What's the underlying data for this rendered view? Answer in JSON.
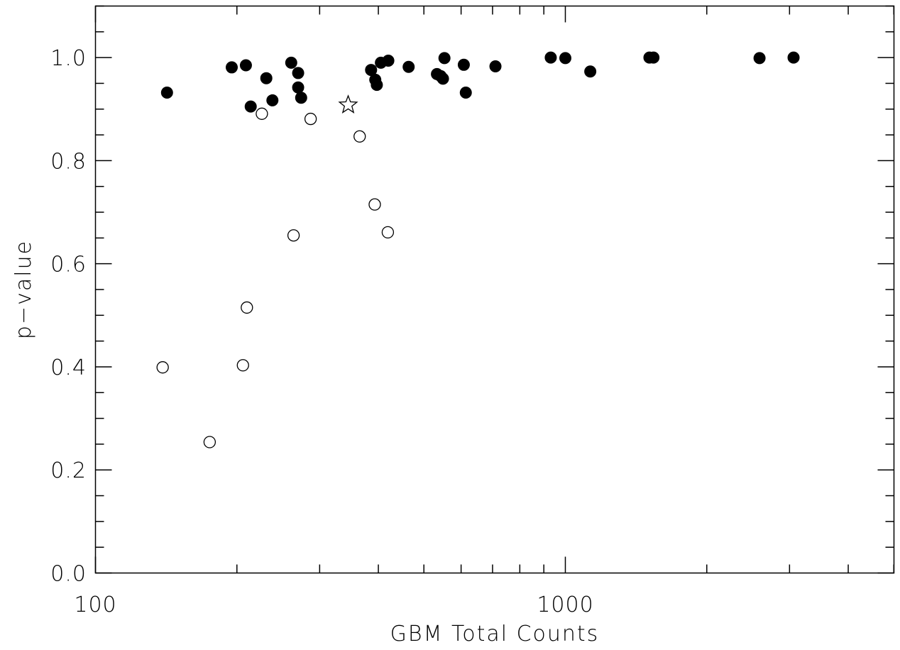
{
  "chart_data": {
    "type": "scatter",
    "title": "",
    "xlabel": "GBM Total Counts",
    "ylabel": "p−value",
    "xscale": "log",
    "xlim": [
      100,
      5000
    ],
    "ylim": [
      0,
      1.1
    ],
    "x_tick_labels": [
      {
        "value": 100,
        "label": "100"
      },
      {
        "value": 1000,
        "label": "1000"
      }
    ],
    "y_tick_labels": [
      {
        "value": 0.0,
        "label": "0.0"
      },
      {
        "value": 0.2,
        "label": "0.2"
      },
      {
        "value": 0.4,
        "label": "0.4"
      },
      {
        "value": 0.6,
        "label": "0.6"
      },
      {
        "value": 0.8,
        "label": "0.8"
      },
      {
        "value": 1.0,
        "label": "1.0"
      }
    ],
    "grid": false,
    "legend": null,
    "series": [
      {
        "marker": "filled-circle",
        "points": [
          {
            "x": 142,
            "y": 0.932
          },
          {
            "x": 195,
            "y": 0.981
          },
          {
            "x": 209,
            "y": 0.985
          },
          {
            "x": 214,
            "y": 0.905
          },
          {
            "x": 231,
            "y": 0.96
          },
          {
            "x": 238,
            "y": 0.917
          },
          {
            "x": 261,
            "y": 0.99
          },
          {
            "x": 270,
            "y": 0.97
          },
          {
            "x": 270,
            "y": 0.942
          },
          {
            "x": 274,
            "y": 0.922
          },
          {
            "x": 386,
            "y": 0.976
          },
          {
            "x": 394,
            "y": 0.957
          },
          {
            "x": 397,
            "y": 0.947
          },
          {
            "x": 405,
            "y": 0.99
          },
          {
            "x": 420,
            "y": 0.994
          },
          {
            "x": 464,
            "y": 0.982
          },
          {
            "x": 533,
            "y": 0.968
          },
          {
            "x": 543,
            "y": 0.964
          },
          {
            "x": 549,
            "y": 0.959
          },
          {
            "x": 553,
            "y": 0.999
          },
          {
            "x": 608,
            "y": 0.986
          },
          {
            "x": 614,
            "y": 0.932
          },
          {
            "x": 710,
            "y": 0.983
          },
          {
            "x": 931,
            "y": 1.0
          },
          {
            "x": 1000,
            "y": 0.999
          },
          {
            "x": 1130,
            "y": 0.973
          },
          {
            "x": 1510,
            "y": 1.0
          },
          {
            "x": 1540,
            "y": 1.0
          },
          {
            "x": 2590,
            "y": 0.999
          },
          {
            "x": 3060,
            "y": 1.0
          }
        ]
      },
      {
        "marker": "open-circle",
        "points": [
          {
            "x": 139,
            "y": 0.399
          },
          {
            "x": 175,
            "y": 0.254
          },
          {
            "x": 206,
            "y": 0.403
          },
          {
            "x": 210,
            "y": 0.515
          },
          {
            "x": 226,
            "y": 0.891
          },
          {
            "x": 264,
            "y": 0.655
          },
          {
            "x": 287,
            "y": 0.881
          },
          {
            "x": 365,
            "y": 0.847
          },
          {
            "x": 393,
            "y": 0.715
          },
          {
            "x": 419,
            "y": 0.661
          }
        ]
      },
      {
        "marker": "open-star",
        "points": [
          {
            "x": 345,
            "y": 0.908
          }
        ]
      }
    ]
  }
}
